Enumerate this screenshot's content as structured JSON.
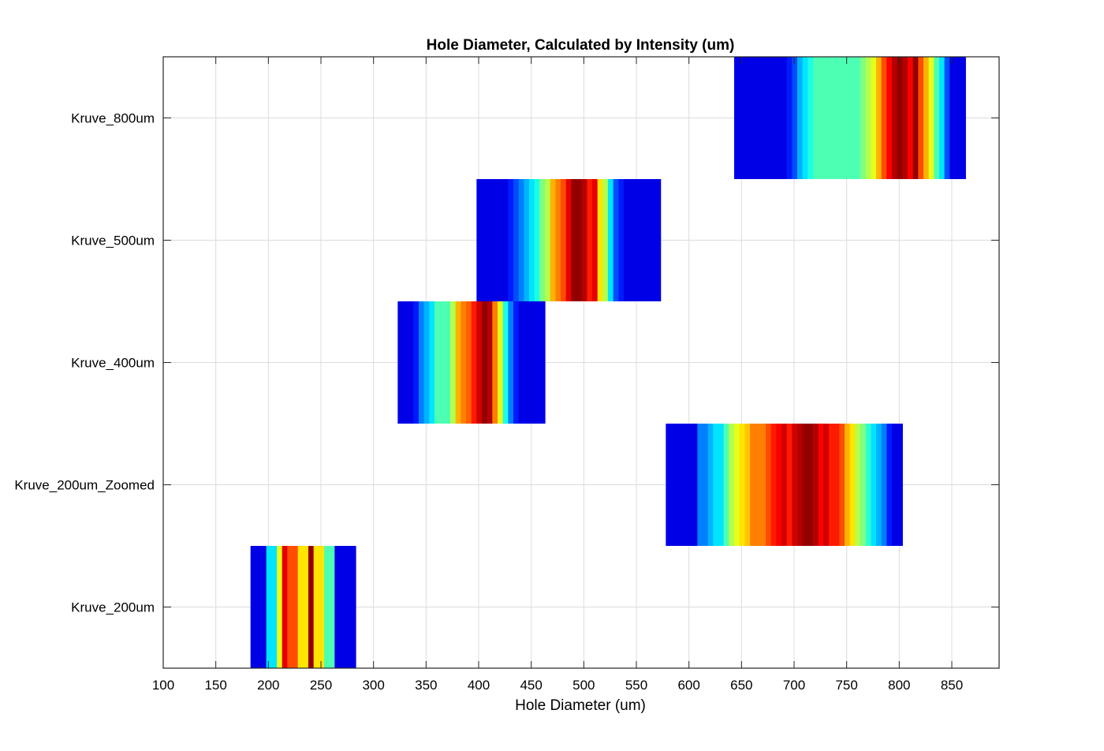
{
  "chart_data": {
    "type": "heatmap",
    "title": "Hole Diameter, Calculated by Intensity (um)",
    "xlabel": "Hole Diameter (um)",
    "ylabel": "",
    "xlim": [
      100,
      895
    ],
    "xticks": [
      100,
      150,
      200,
      250,
      300,
      350,
      400,
      450,
      500,
      550,
      600,
      650,
      700,
      750,
      800,
      850
    ],
    "grid": true,
    "colormap": "jet",
    "categories": [
      "Kruve_200um",
      "Kruve_200um_Zoomed",
      "Kruve_400um",
      "Kruve_500um",
      "Kruve_800um"
    ],
    "series": [
      {
        "name": "Kruve_200um",
        "x_start": 183,
        "bin_width": 5,
        "intensity": [
          0.1,
          0.1,
          0.1,
          0.35,
          0.35,
          0.6,
          0.9,
          0.8,
          0.8,
          0.65,
          0.65,
          0.98,
          0.65,
          0.65,
          0.45,
          0.45,
          0.1,
          0.1,
          0.1,
          0.1
        ]
      },
      {
        "name": "Kruve_200um_Zoomed",
        "x_start": 578,
        "bin_width": 5,
        "intensity": [
          0.1,
          0.1,
          0.1,
          0.1,
          0.1,
          0.1,
          0.25,
          0.25,
          0.3,
          0.35,
          0.35,
          0.45,
          0.55,
          0.6,
          0.65,
          0.68,
          0.75,
          0.75,
          0.75,
          0.8,
          0.85,
          0.88,
          0.92,
          0.85,
          0.92,
          0.95,
          0.98,
          0.98,
          0.95,
          0.88,
          0.92,
          0.85,
          0.85,
          0.8,
          0.7,
          0.65,
          0.55,
          0.5,
          0.42,
          0.35,
          0.3,
          0.25,
          0.15,
          0.1,
          0.1
        ]
      },
      {
        "name": "Kruve_400um",
        "x_start": 323,
        "bin_width": 5,
        "intensity": [
          0.1,
          0.1,
          0.1,
          0.15,
          0.25,
          0.3,
          0.35,
          0.45,
          0.45,
          0.45,
          0.55,
          0.7,
          0.75,
          0.78,
          0.85,
          0.92,
          0.98,
          0.95,
          0.75,
          0.6,
          0.4,
          0.25,
          0.15,
          0.1,
          0.1,
          0.1,
          0.1,
          0.1
        ]
      },
      {
        "name": "Kruve_500um",
        "x_start": 398,
        "bin_width": 5,
        "intensity": [
          0.1,
          0.1,
          0.1,
          0.1,
          0.1,
          0.1,
          0.15,
          0.2,
          0.25,
          0.3,
          0.35,
          0.4,
          0.5,
          0.55,
          0.7,
          0.75,
          0.8,
          0.9,
          0.98,
          0.98,
          0.95,
          0.85,
          0.9,
          0.65,
          0.55,
          0.35,
          0.2,
          0.15,
          0.1,
          0.1,
          0.1,
          0.1,
          0.1,
          0.1,
          0.1
        ]
      },
      {
        "name": "Kruve_800um",
        "x_start": 643,
        "bin_width": 5,
        "intensity": [
          0.1,
          0.1,
          0.1,
          0.1,
          0.1,
          0.1,
          0.1,
          0.1,
          0.1,
          0.1,
          0.15,
          0.2,
          0.3,
          0.35,
          0.4,
          0.45,
          0.45,
          0.45,
          0.45,
          0.45,
          0.45,
          0.45,
          0.45,
          0.45,
          0.5,
          0.55,
          0.6,
          0.7,
          0.8,
          0.88,
          0.95,
          0.98,
          0.95,
          0.88,
          0.98,
          0.8,
          0.7,
          0.6,
          0.45,
          0.35,
          0.2,
          0.1,
          0.1,
          0.1
        ]
      }
    ]
  }
}
